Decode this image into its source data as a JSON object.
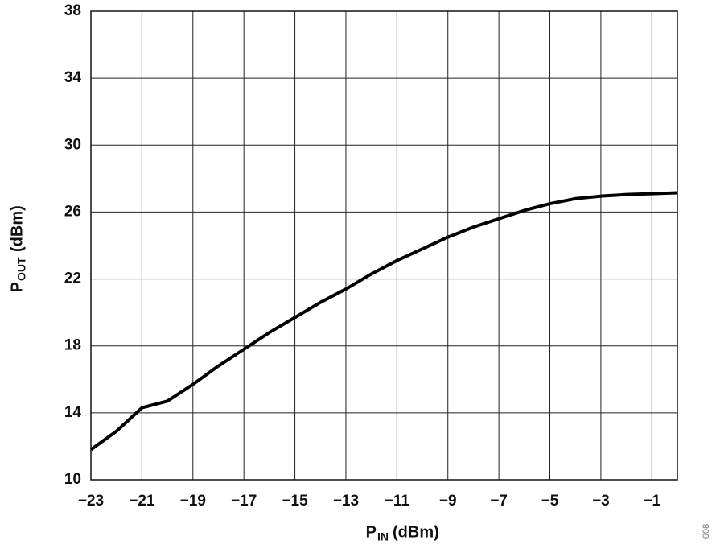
{
  "chart_data": {
    "type": "line",
    "x_label": {
      "main": "P",
      "sub": "IN",
      "unit": "(dBm)"
    },
    "y_label": {
      "main": "P",
      "sub": "OUT",
      "unit": "(dBm)"
    },
    "figure_number": "008",
    "x": [
      -23,
      -22,
      -21,
      -20,
      -19,
      -18,
      -17,
      -16,
      -15,
      -14,
      -13,
      -12,
      -11,
      -10,
      -9,
      -8,
      -7,
      -6,
      -5,
      -4,
      -3,
      -2,
      -1,
      0
    ],
    "series": [
      {
        "color": "#000000",
        "values": [
          11.8,
          12.9,
          14.3,
          14.7,
          15.7,
          16.8,
          17.8,
          18.8,
          19.7,
          20.6,
          21.4,
          22.3,
          23.1,
          23.8,
          24.5,
          25.1,
          25.6,
          26.1,
          26.5,
          26.8,
          26.95,
          27.05,
          27.1,
          27.15
        ]
      }
    ],
    "xlim": [
      -23,
      0
    ],
    "ylim": [
      10,
      38
    ],
    "xticks": [
      {
        "value": -23,
        "label": "−23"
      },
      {
        "value": -21,
        "label": "−21"
      },
      {
        "value": -19,
        "label": "−19"
      },
      {
        "value": -17,
        "label": "−17"
      },
      {
        "value": -15,
        "label": "−15"
      },
      {
        "value": -13,
        "label": "−13"
      },
      {
        "value": -11,
        "label": "−11"
      },
      {
        "value": -9,
        "label": "−9"
      },
      {
        "value": -7,
        "label": "−7"
      },
      {
        "value": -5,
        "label": "−5"
      },
      {
        "value": -3,
        "label": "−3"
      },
      {
        "value": -1,
        "label": "−1"
      }
    ],
    "yticks": [
      10,
      14,
      18,
      22,
      26,
      30,
      34,
      38
    ],
    "grid": true
  }
}
